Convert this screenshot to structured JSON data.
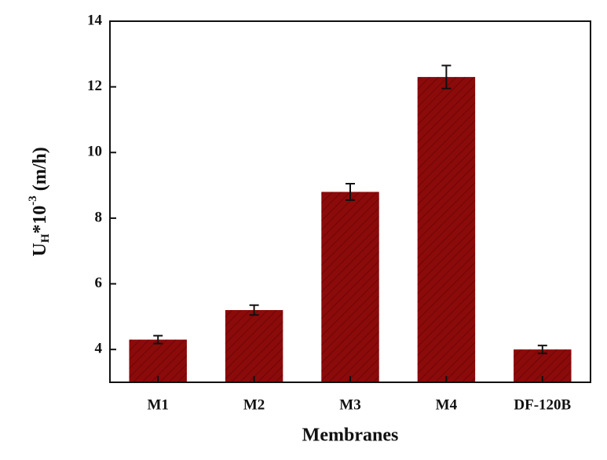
{
  "chart_data": {
    "type": "bar",
    "x_label": "Membranes",
    "y_label": {
      "base": "U",
      "sub": "H",
      "mid": "*10",
      "sup": "-3",
      "unit": "(m/h)"
    },
    "categories": [
      "M1",
      "M2",
      "M3",
      "M4",
      "DF-120B"
    ],
    "values": [
      4.3,
      5.2,
      8.8,
      12.3,
      4.0
    ],
    "errors": [
      0.12,
      0.15,
      0.25,
      0.35,
      0.12
    ],
    "color": "#8b0a0a",
    "ylim": [
      3,
      14
    ],
    "yticks": [
      4,
      6,
      8,
      10,
      12,
      14
    ]
  }
}
